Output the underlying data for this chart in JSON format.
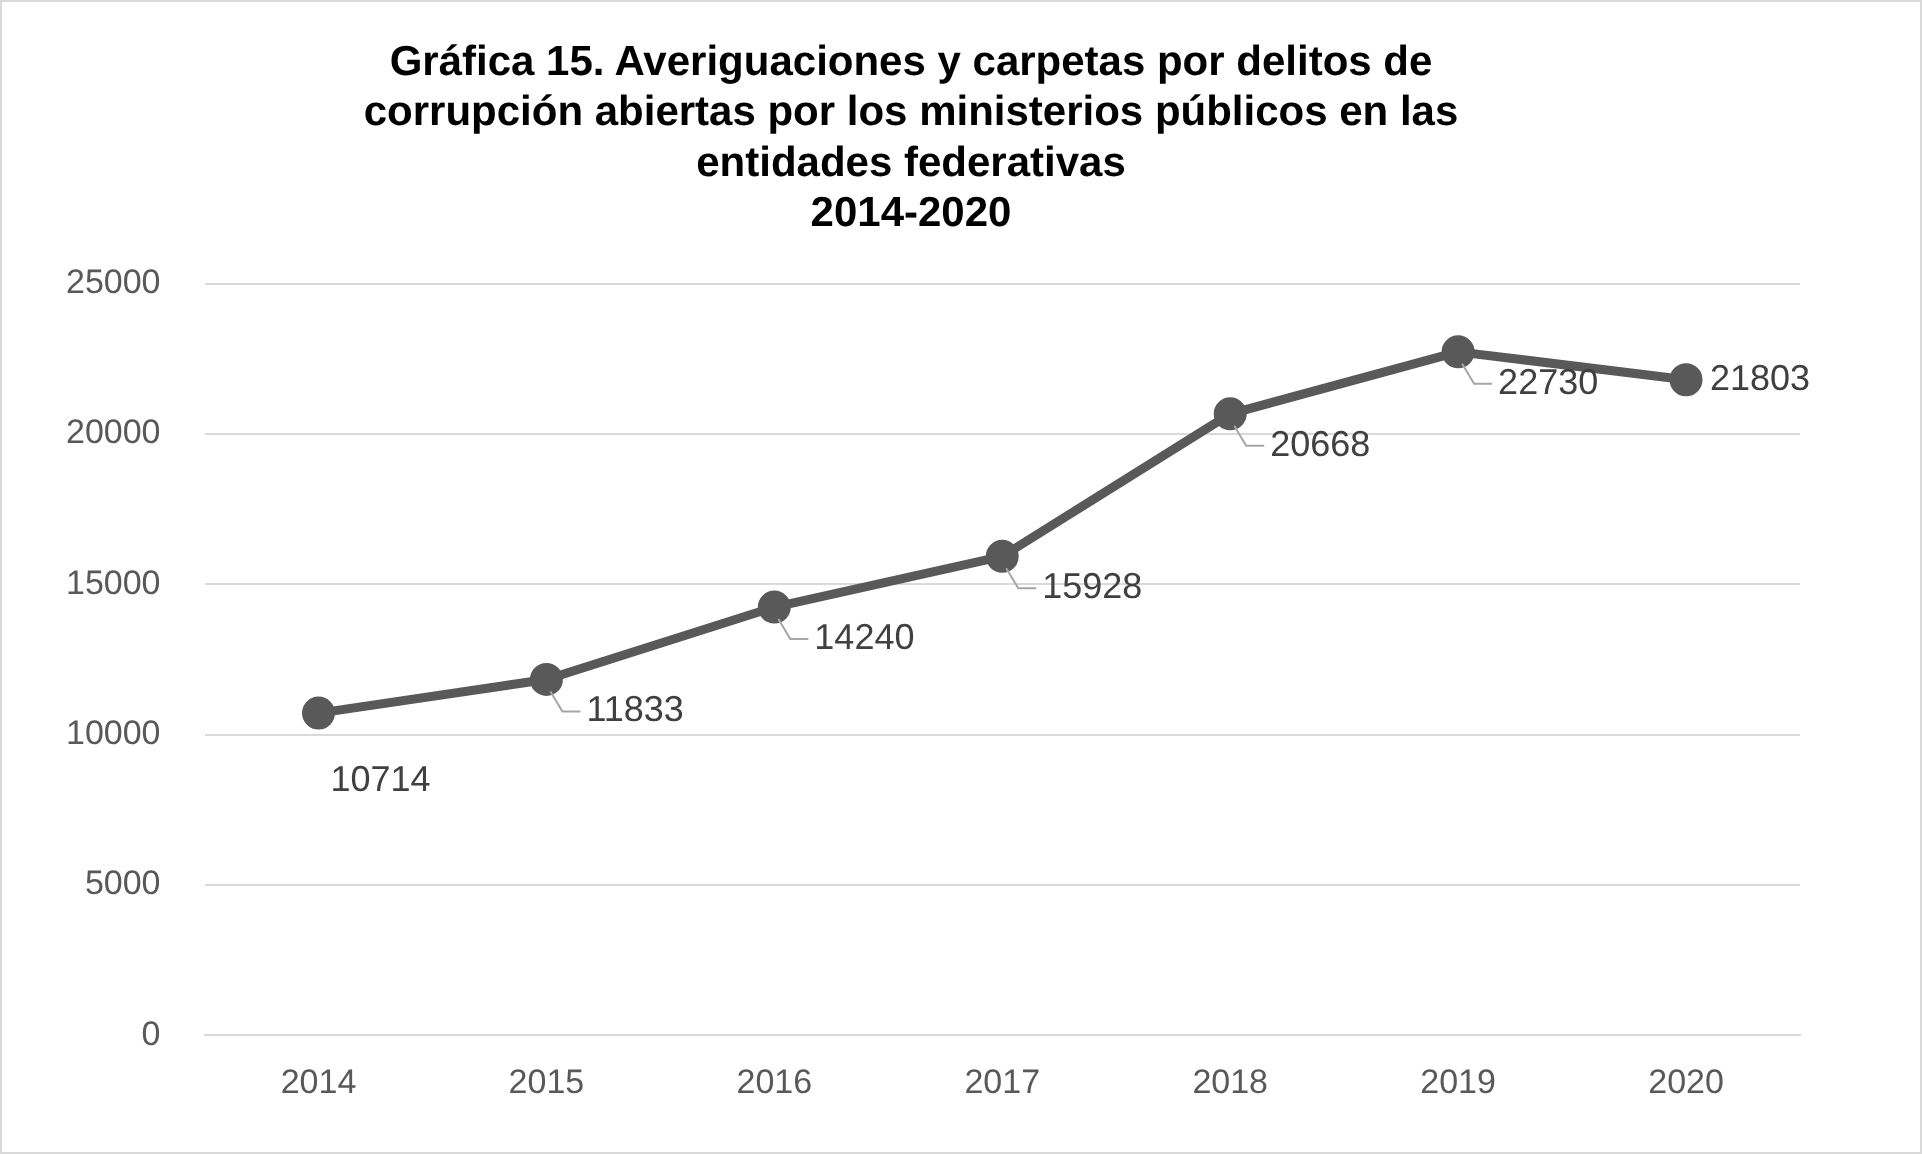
{
  "chart_data": {
    "type": "line",
    "title": [
      "Gráfica 15. Averiguaciones y carpetas por delitos de",
      "corrupción abiertas por los ministerios públicos en las",
      "entidades federativas",
      "2014-2020"
    ],
    "categories": [
      "2014",
      "2015",
      "2016",
      "2017",
      "2018",
      "2019",
      "2020"
    ],
    "series": [
      {
        "color": "#595959",
        "values": [
          10714,
          11833,
          14240,
          15928,
          20668,
          22730,
          21803
        ]
      }
    ],
    "ylim": [
      0,
      25000
    ],
    "yticks": [
      0,
      5000,
      10000,
      15000,
      20000,
      25000
    ],
    "grid": "y",
    "legend": false,
    "marker": "circle",
    "line_style": "solid",
    "data_labels": true
  }
}
